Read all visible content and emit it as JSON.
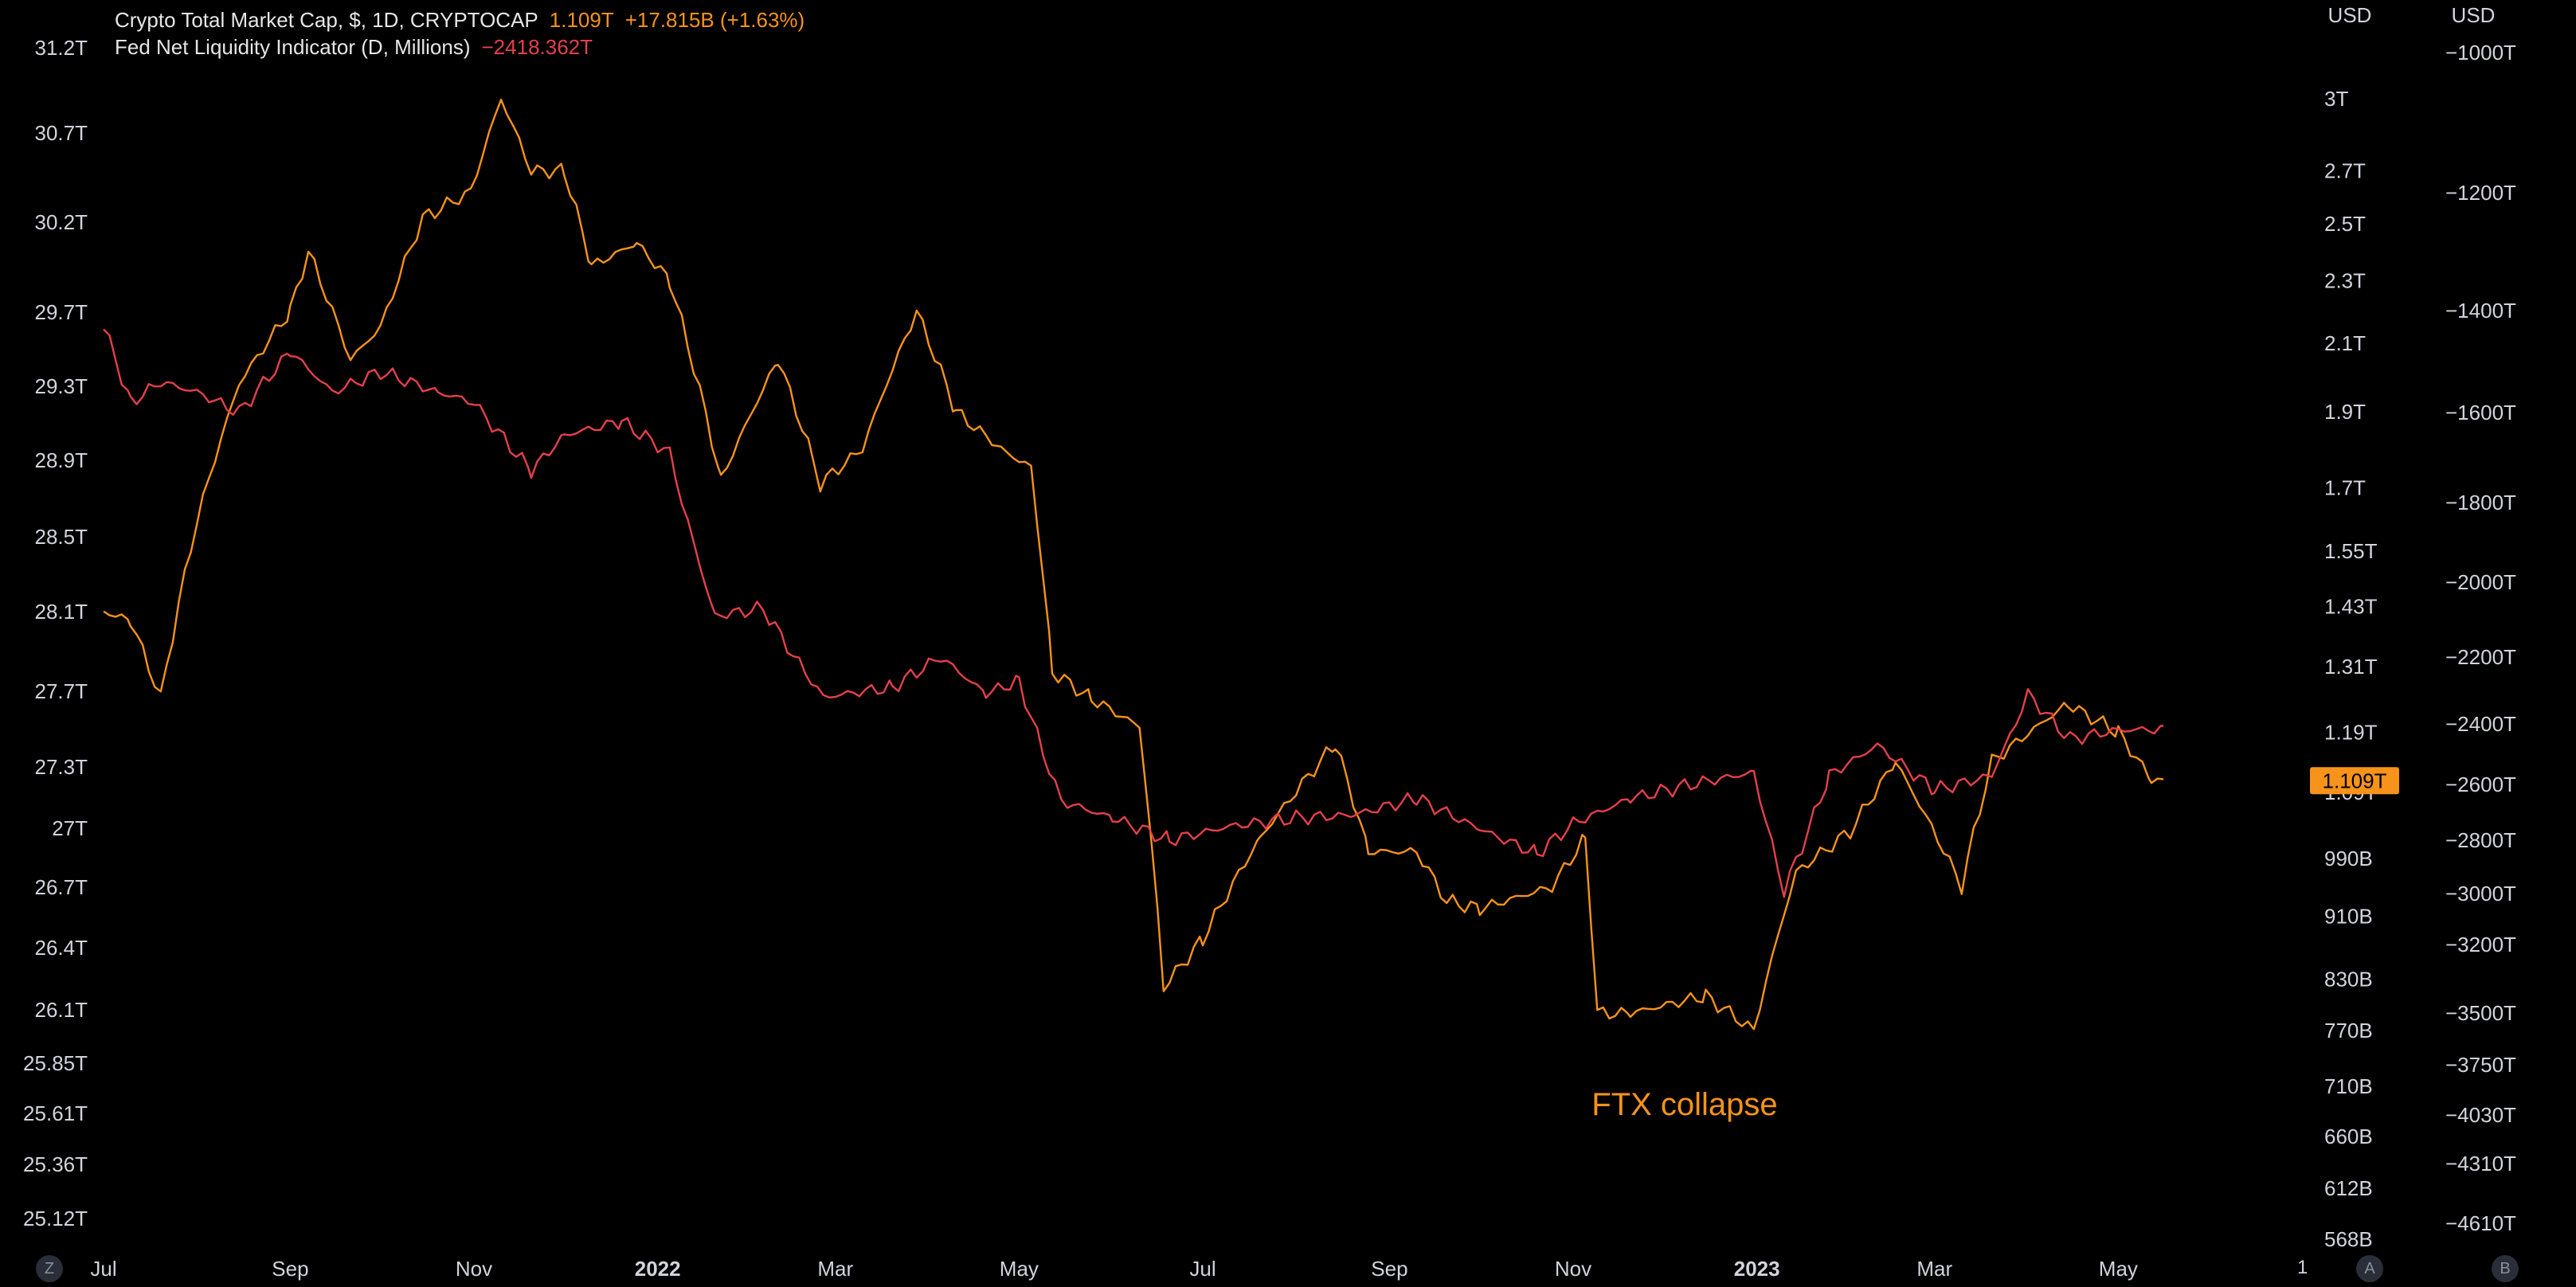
{
  "legend": {
    "series1": {
      "name": "Crypto Total Market Cap, $, 1D, CRYPTOCAP",
      "value": "1.109T",
      "change": "+17.815B (+1.63%)"
    },
    "series2": {
      "name": "Fed Net Liquidity Indicator (D, Millions)",
      "value": "−2418.362T"
    }
  },
  "corner_buttons": {
    "left": "Z",
    "auto": "A",
    "log": "B",
    "scale_one": "1"
  },
  "colors": {
    "background": "#000000",
    "crypto": "#f7931a",
    "fed": "#e5404a",
    "text": "#d1d4dc"
  },
  "chart_data": {
    "type": "line",
    "annotations": [
      {
        "text": "FTX collapse",
        "date": "2022-12-08",
        "anchor_series": "Crypto Total Market Cap"
      }
    ],
    "price_label": "1.109T",
    "x_ticks": [
      {
        "label": "Jul",
        "date": "2021-07-01"
      },
      {
        "label": "Sep",
        "date": "2021-09-01"
      },
      {
        "label": "Nov",
        "date": "2021-11-01"
      },
      {
        "label": "2022",
        "date": "2022-01-01",
        "bold": true
      },
      {
        "label": "Mar",
        "date": "2022-03-01"
      },
      {
        "label": "May",
        "date": "2022-05-01"
      },
      {
        "label": "Jul",
        "date": "2022-07-01"
      },
      {
        "label": "Sep",
        "date": "2022-09-01"
      },
      {
        "label": "Nov",
        "date": "2022-11-01"
      },
      {
        "label": "2023",
        "date": "2023-01-01",
        "bold": true
      },
      {
        "label": "Mar",
        "date": "2023-03-01"
      },
      {
        "label": "May",
        "date": "2023-05-01"
      }
    ],
    "axes": {
      "left": {
        "labels": [
          "31.2T",
          "30.7T",
          "30.2T",
          "29.7T",
          "29.3T",
          "28.9T",
          "28.5T",
          "28.1T",
          "27.7T",
          "27.3T",
          "27T",
          "26.7T",
          "26.4T",
          "26.1T",
          "25.85T",
          "25.61T",
          "25.36T",
          "25.12T"
        ]
      },
      "right_crypto": {
        "unit": "USD",
        "scale": "log",
        "ticks": [
          {
            "label": "3T",
            "v": 3.0
          },
          {
            "label": "2.7T",
            "v": 2.7
          },
          {
            "label": "2.5T",
            "v": 2.5
          },
          {
            "label": "2.3T",
            "v": 2.3
          },
          {
            "label": "2.1T",
            "v": 2.1
          },
          {
            "label": "1.9T",
            "v": 1.9
          },
          {
            "label": "1.7T",
            "v": 1.7
          },
          {
            "label": "1.55T",
            "v": 1.55
          },
          {
            "label": "1.43T",
            "v": 1.43
          },
          {
            "label": "1.31T",
            "v": 1.31
          },
          {
            "label": "1.19T",
            "v": 1.19
          },
          {
            "label": "1.09T",
            "v": 1.09
          },
          {
            "label": "990B",
            "v": 0.99
          },
          {
            "label": "910B",
            "v": 0.91
          },
          {
            "label": "830B",
            "v": 0.83
          },
          {
            "label": "770B",
            "v": 0.77
          },
          {
            "label": "710B",
            "v": 0.71
          },
          {
            "label": "660B",
            "v": 0.66
          },
          {
            "label": "612B",
            "v": 0.612
          },
          {
            "label": "568B",
            "v": 0.568
          }
        ]
      },
      "right_fed": {
        "unit": "USD",
        "ticks": [
          "−1000T",
          "−1200T",
          "−1400T",
          "−1600T",
          "−1800T",
          "−2000T",
          "−2200T",
          "−2400T",
          "−2600T",
          "−2800T",
          "−3000T",
          "−3200T",
          "−3500T",
          "−3750T",
          "−4030T",
          "−4310T",
          "−4610T"
        ]
      }
    },
    "series": [
      {
        "name": "Crypto Total Market Cap",
        "unit": "T USD",
        "color": "#f7931a",
        "points": [
          [
            "2021-07-01",
            1.42
          ],
          [
            "2021-07-10",
            1.4
          ],
          [
            "2021-07-20",
            1.25
          ],
          [
            "2021-08-01",
            1.62
          ],
          [
            "2021-08-15",
            1.98
          ],
          [
            "2021-09-01",
            2.2
          ],
          [
            "2021-09-07",
            2.4
          ],
          [
            "2021-09-21",
            2.05
          ],
          [
            "2021-10-01",
            2.15
          ],
          [
            "2021-10-15",
            2.52
          ],
          [
            "2021-10-31",
            2.62
          ],
          [
            "2021-11-10",
            3.0
          ],
          [
            "2021-11-20",
            2.7
          ],
          [
            "2021-12-01",
            2.7
          ],
          [
            "2021-12-10",
            2.35
          ],
          [
            "2021-12-25",
            2.43
          ],
          [
            "2022-01-05",
            2.3
          ],
          [
            "2022-01-22",
            1.72
          ],
          [
            "2022-02-10",
            2.05
          ],
          [
            "2022-02-24",
            1.71
          ],
          [
            "2022-03-10",
            1.8
          ],
          [
            "2022-03-28",
            2.2
          ],
          [
            "2022-04-10",
            1.9
          ],
          [
            "2022-04-25",
            1.8
          ],
          [
            "2022-05-05",
            1.75
          ],
          [
            "2022-05-12",
            1.3
          ],
          [
            "2022-05-25",
            1.25
          ],
          [
            "2022-06-10",
            1.2
          ],
          [
            "2022-06-18",
            0.82
          ],
          [
            "2022-07-01",
            0.88
          ],
          [
            "2022-07-20",
            1.02
          ],
          [
            "2022-08-14",
            1.17
          ],
          [
            "2022-08-25",
            1.0
          ],
          [
            "2022-09-10",
            1.0
          ],
          [
            "2022-09-20",
            0.93
          ],
          [
            "2022-10-01",
            0.92
          ],
          [
            "2022-10-25",
            0.95
          ],
          [
            "2022-11-05",
            1.02
          ],
          [
            "2022-11-09",
            0.79
          ],
          [
            "2022-11-20",
            0.79
          ],
          [
            "2022-12-15",
            0.81
          ],
          [
            "2022-12-31",
            0.77
          ],
          [
            "2023-01-14",
            0.97
          ],
          [
            "2023-02-01",
            1.03
          ],
          [
            "2023-02-16",
            1.14
          ],
          [
            "2023-03-10",
            0.95
          ],
          [
            "2023-03-20",
            1.14
          ],
          [
            "2023-04-14",
            1.24
          ],
          [
            "2023-05-01",
            1.19
          ],
          [
            "2023-05-12",
            1.11
          ],
          [
            "2023-05-16",
            1.109
          ]
        ]
      },
      {
        "name": "Fed Net Liquidity Indicator",
        "unit": "T",
        "color": "#e5404a",
        "points": [
          [
            "2021-07-01",
            -1430
          ],
          [
            "2021-07-10",
            -1580
          ],
          [
            "2021-07-20",
            -1540
          ],
          [
            "2021-08-01",
            -1560
          ],
          [
            "2021-08-15",
            -1600
          ],
          [
            "2021-09-01",
            -1480
          ],
          [
            "2021-09-15",
            -1560
          ],
          [
            "2021-10-01",
            -1520
          ],
          [
            "2021-10-20",
            -1560
          ],
          [
            "2021-11-01",
            -1580
          ],
          [
            "2021-11-20",
            -1730
          ],
          [
            "2021-12-01",
            -1650
          ],
          [
            "2021-12-20",
            -1620
          ],
          [
            "2022-01-05",
            -1690
          ],
          [
            "2022-01-20",
            -2090
          ],
          [
            "2022-02-05",
            -2070
          ],
          [
            "2022-02-25",
            -2320
          ],
          [
            "2022-03-20",
            -2290
          ],
          [
            "2022-04-05",
            -2200
          ],
          [
            "2022-04-20",
            -2310
          ],
          [
            "2022-05-01",
            -2270
          ],
          [
            "2022-05-15",
            -2660
          ],
          [
            "2022-06-01",
            -2720
          ],
          [
            "2022-06-20",
            -2800
          ],
          [
            "2022-07-10",
            -2750
          ],
          [
            "2022-08-01",
            -2720
          ],
          [
            "2022-08-20",
            -2710
          ],
          [
            "2022-09-10",
            -2650
          ],
          [
            "2022-10-01",
            -2760
          ],
          [
            "2022-10-20",
            -2850
          ],
          [
            "2022-11-01",
            -2740
          ],
          [
            "2022-11-20",
            -2650
          ],
          [
            "2022-12-10",
            -2600
          ],
          [
            "2022-12-31",
            -2560
          ],
          [
            "2023-01-10",
            -2990
          ],
          [
            "2023-01-25",
            -2570
          ],
          [
            "2023-02-10",
            -2470
          ],
          [
            "2023-03-01",
            -2620
          ],
          [
            "2023-03-20",
            -2570
          ],
          [
            "2023-04-01",
            -2310
          ],
          [
            "2023-04-15",
            -2450
          ],
          [
            "2023-05-01",
            -2420
          ],
          [
            "2023-05-16",
            -2418.362
          ]
        ]
      }
    ]
  }
}
